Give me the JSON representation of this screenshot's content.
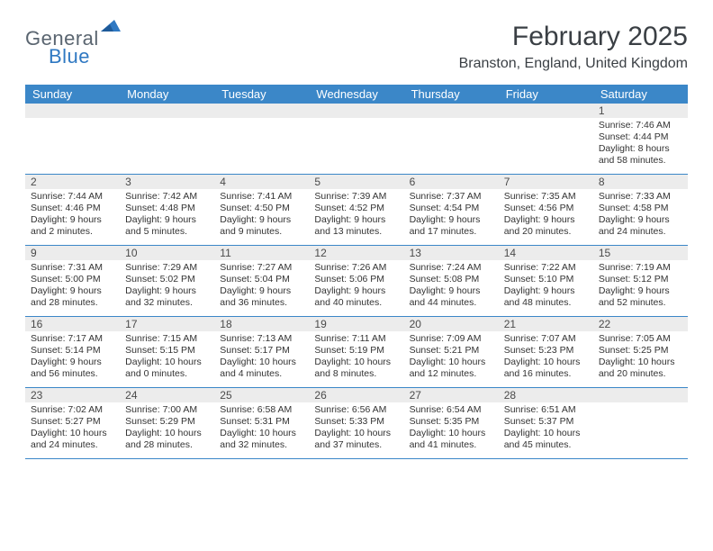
{
  "logo": {
    "word1": "General",
    "word2": "Blue"
  },
  "header": {
    "month_title": "February 2025",
    "location": "Branston, England, United Kingdom"
  },
  "colors": {
    "header_bg": "#3b87c8",
    "header_text": "#ffffff",
    "daynum_bg": "#ececec",
    "row_border": "#3b87c8",
    "logo_gray": "#5a6570",
    "logo_blue": "#2f78c2",
    "text": "#333333"
  },
  "typography": {
    "month_title_fontsize": 30,
    "location_fontsize": 16,
    "dayheader_fontsize": 13,
    "daynum_fontsize": 12,
    "body_fontsize": 10.5
  },
  "day_headers": [
    "Sunday",
    "Monday",
    "Tuesday",
    "Wednesday",
    "Thursday",
    "Friday",
    "Saturday"
  ],
  "weeks": [
    [
      null,
      null,
      null,
      null,
      null,
      null,
      {
        "n": "1",
        "sunrise": "7:46 AM",
        "sunset": "4:44 PM",
        "daylight": "8 hours and 58 minutes."
      }
    ],
    [
      {
        "n": "2",
        "sunrise": "7:44 AM",
        "sunset": "4:46 PM",
        "daylight": "9 hours and 2 minutes."
      },
      {
        "n": "3",
        "sunrise": "7:42 AM",
        "sunset": "4:48 PM",
        "daylight": "9 hours and 5 minutes."
      },
      {
        "n": "4",
        "sunrise": "7:41 AM",
        "sunset": "4:50 PM",
        "daylight": "9 hours and 9 minutes."
      },
      {
        "n": "5",
        "sunrise": "7:39 AM",
        "sunset": "4:52 PM",
        "daylight": "9 hours and 13 minutes."
      },
      {
        "n": "6",
        "sunrise": "7:37 AM",
        "sunset": "4:54 PM",
        "daylight": "9 hours and 17 minutes."
      },
      {
        "n": "7",
        "sunrise": "7:35 AM",
        "sunset": "4:56 PM",
        "daylight": "9 hours and 20 minutes."
      },
      {
        "n": "8",
        "sunrise": "7:33 AM",
        "sunset": "4:58 PM",
        "daylight": "9 hours and 24 minutes."
      }
    ],
    [
      {
        "n": "9",
        "sunrise": "7:31 AM",
        "sunset": "5:00 PM",
        "daylight": "9 hours and 28 minutes."
      },
      {
        "n": "10",
        "sunrise": "7:29 AM",
        "sunset": "5:02 PM",
        "daylight": "9 hours and 32 minutes."
      },
      {
        "n": "11",
        "sunrise": "7:27 AM",
        "sunset": "5:04 PM",
        "daylight": "9 hours and 36 minutes."
      },
      {
        "n": "12",
        "sunrise": "7:26 AM",
        "sunset": "5:06 PM",
        "daylight": "9 hours and 40 minutes."
      },
      {
        "n": "13",
        "sunrise": "7:24 AM",
        "sunset": "5:08 PM",
        "daylight": "9 hours and 44 minutes."
      },
      {
        "n": "14",
        "sunrise": "7:22 AM",
        "sunset": "5:10 PM",
        "daylight": "9 hours and 48 minutes."
      },
      {
        "n": "15",
        "sunrise": "7:19 AM",
        "sunset": "5:12 PM",
        "daylight": "9 hours and 52 minutes."
      }
    ],
    [
      {
        "n": "16",
        "sunrise": "7:17 AM",
        "sunset": "5:14 PM",
        "daylight": "9 hours and 56 minutes."
      },
      {
        "n": "17",
        "sunrise": "7:15 AM",
        "sunset": "5:15 PM",
        "daylight": "10 hours and 0 minutes."
      },
      {
        "n": "18",
        "sunrise": "7:13 AM",
        "sunset": "5:17 PM",
        "daylight": "10 hours and 4 minutes."
      },
      {
        "n": "19",
        "sunrise": "7:11 AM",
        "sunset": "5:19 PM",
        "daylight": "10 hours and 8 minutes."
      },
      {
        "n": "20",
        "sunrise": "7:09 AM",
        "sunset": "5:21 PM",
        "daylight": "10 hours and 12 minutes."
      },
      {
        "n": "21",
        "sunrise": "7:07 AM",
        "sunset": "5:23 PM",
        "daylight": "10 hours and 16 minutes."
      },
      {
        "n": "22",
        "sunrise": "7:05 AM",
        "sunset": "5:25 PM",
        "daylight": "10 hours and 20 minutes."
      }
    ],
    [
      {
        "n": "23",
        "sunrise": "7:02 AM",
        "sunset": "5:27 PM",
        "daylight": "10 hours and 24 minutes."
      },
      {
        "n": "24",
        "sunrise": "7:00 AM",
        "sunset": "5:29 PM",
        "daylight": "10 hours and 28 minutes."
      },
      {
        "n": "25",
        "sunrise": "6:58 AM",
        "sunset": "5:31 PM",
        "daylight": "10 hours and 32 minutes."
      },
      {
        "n": "26",
        "sunrise": "6:56 AM",
        "sunset": "5:33 PM",
        "daylight": "10 hours and 37 minutes."
      },
      {
        "n": "27",
        "sunrise": "6:54 AM",
        "sunset": "5:35 PM",
        "daylight": "10 hours and 41 minutes."
      },
      {
        "n": "28",
        "sunrise": "6:51 AM",
        "sunset": "5:37 PM",
        "daylight": "10 hours and 45 minutes."
      },
      null
    ]
  ],
  "labels": {
    "sunrise_prefix": "Sunrise: ",
    "sunset_prefix": "Sunset: ",
    "daylight_prefix": "Daylight: "
  }
}
